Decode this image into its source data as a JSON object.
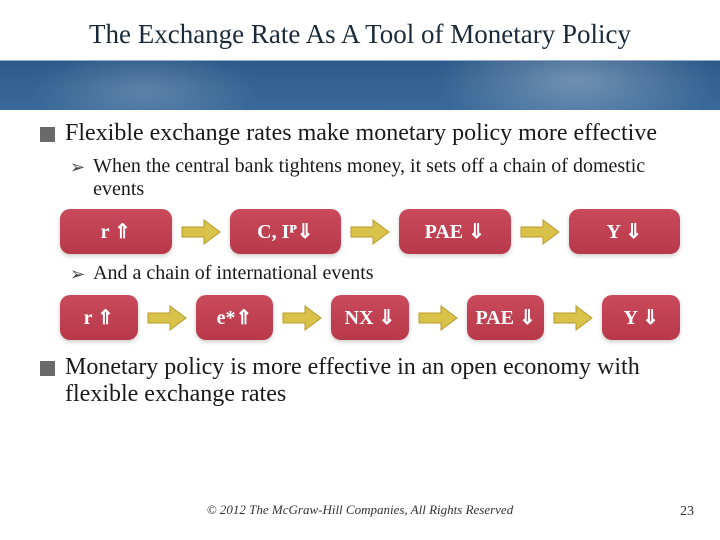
{
  "title": "The Exchange Rate As A Tool of Monetary Policy",
  "bullets": {
    "b1": "Flexible exchange rates make monetary policy more effective",
    "b2a": "When the central bank tightens money, it sets off a chain of domestic events",
    "b2b": "And a chain of international events",
    "b3": "Monetary policy is more effective in an open economy with flexible exchange rates"
  },
  "chain1": {
    "boxes": [
      "r ⇑",
      "C, Iᴾ⇓",
      "PAE ⇓",
      "Y ⇓"
    ]
  },
  "chain2": {
    "boxes": [
      "r ⇑",
      "e*⇑",
      "NX ⇓",
      "PAE ⇓",
      "Y ⇓"
    ]
  },
  "arrow": {
    "fill": "#d9c24a",
    "stroke": "#b89a2a",
    "width": 42,
    "height": 30
  },
  "box_style": {
    "bg_top": "#c94a5a",
    "bg_bottom": "#b8394a",
    "text_color": "#ffffff",
    "radius": 10
  },
  "footer": "© 2012 The McGraw-Hill Companies, All Rights Reserved",
  "page": "23"
}
